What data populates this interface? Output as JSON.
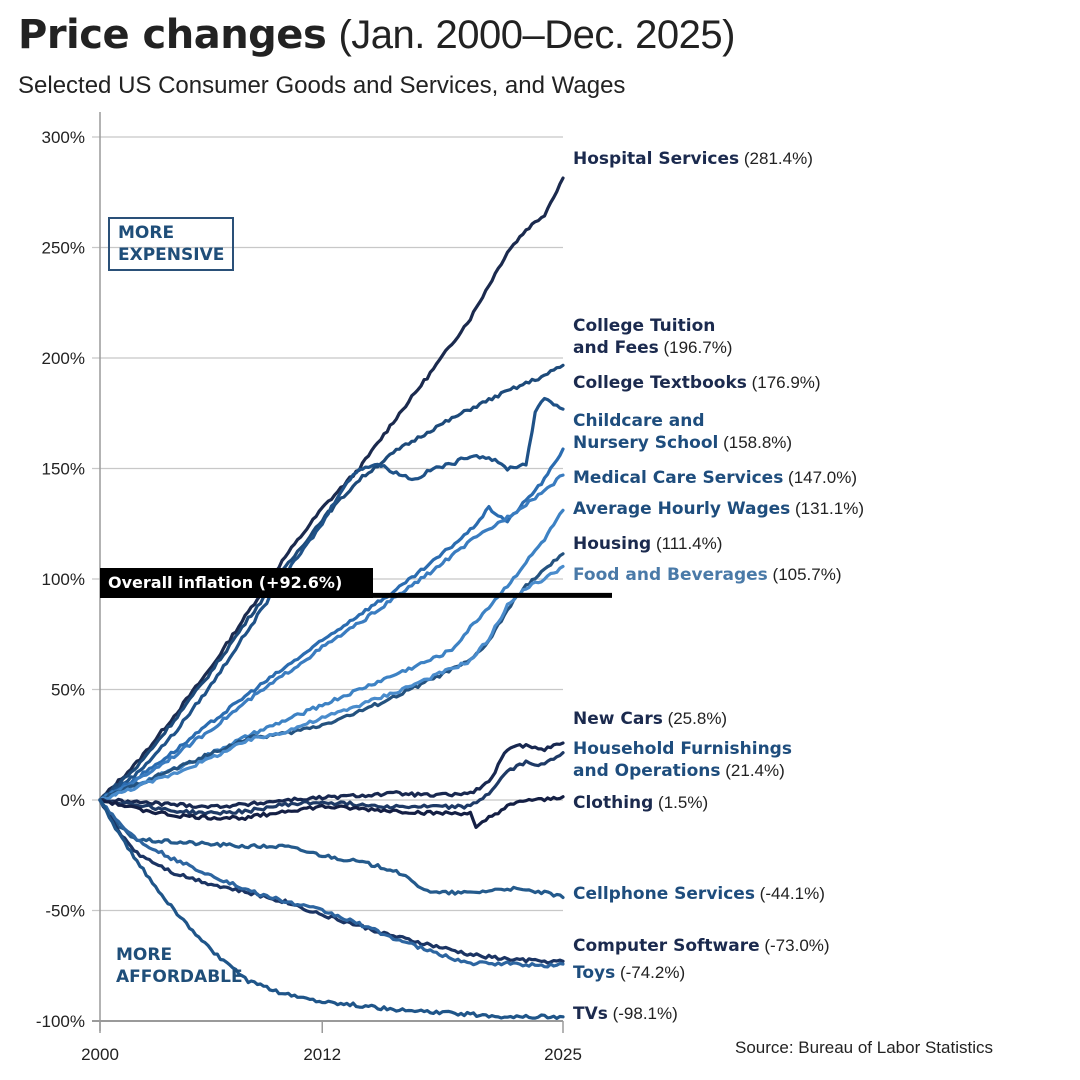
{
  "header": {
    "title_bold": "Price changes",
    "title_light": "(Jan. 2000–Dec. 2025)",
    "subtitle": "Selected US Consumer Goods and Services, and Wages"
  },
  "callouts": {
    "more_expensive_line1": "MORE",
    "more_expensive_line2": "EXPENSIVE",
    "more_affordable_line1": "MORE",
    "more_affordable_line2": "AFFORDABLE"
  },
  "source": "Source: Bureau of Labor Statistics",
  "chart_data": {
    "type": "line",
    "title": "Price changes (Jan. 2000–Dec. 2025)",
    "subtitle": "Selected US Consumer Goods and Services, and Wages",
    "xlabel": "",
    "ylabel": "",
    "xlim": [
      2000,
      2025
    ],
    "ylim": [
      -100,
      300
    ],
    "x_ticks": [
      2000,
      2012,
      2025
    ],
    "x_tick_labels": [
      "2000",
      "2012",
      "2025"
    ],
    "y_ticks": [
      -100,
      -50,
      0,
      50,
      100,
      150,
      200,
      250,
      300
    ],
    "y_tick_labels": [
      "-100%",
      "-50%",
      "0%",
      "50%",
      "100%",
      "150%",
      "200%",
      "250%",
      "300%"
    ],
    "grid": "horizontal",
    "reference_line": {
      "label": "Overall inflation (+92.6%)",
      "value": 92.6
    },
    "series": [
      {
        "name": "Hospital Services",
        "final": 281.4,
        "color": "#1b2a4e",
        "label_color": "#1b2a4e",
        "label": [
          "Hospital Services"
        ],
        "x": [
          2000,
          2002,
          2004,
          2006,
          2008,
          2010,
          2012,
          2014,
          2016,
          2018,
          2020,
          2022,
          2023,
          2024,
          2025
        ],
        "y": [
          0,
          17,
          38,
          60,
          85,
          110,
          132,
          150,
          173,
          195,
          218,
          248,
          258,
          265,
          281.4
        ]
      },
      {
        "name": "College Tuition and Fees",
        "final": 196.7,
        "color": "#1d4a7a",
        "label_color": "#1b2a4e",
        "label": [
          "College Tuition",
          "and Fees"
        ],
        "x": [
          2000,
          2002,
          2004,
          2006,
          2008,
          2010,
          2012,
          2014,
          2016,
          2018,
          2020,
          2022,
          2024,
          2025
        ],
        "y": [
          0,
          15,
          36,
          58,
          82,
          105,
          127,
          145,
          158,
          168,
          177,
          185,
          192,
          196.7
        ]
      },
      {
        "name": "College Textbooks",
        "final": 176.9,
        "color": "#1f5288",
        "label_color": "#1b2a4e",
        "label": [
          "College Textbooks"
        ],
        "x": [
          2000,
          2002,
          2004,
          2006,
          2008,
          2010,
          2012,
          2013,
          2014,
          2015,
          2016,
          2017,
          2018,
          2019,
          2020,
          2021,
          2022,
          2023,
          2023.5,
          2024,
          2025
        ],
        "y": [
          0,
          12,
          30,
          52,
          77,
          102,
          125,
          140,
          150,
          152,
          148,
          145,
          150,
          152,
          156,
          155,
          150,
          152,
          175,
          182,
          176.9
        ]
      },
      {
        "name": "Childcare and Nursery School",
        "final": 158.8,
        "color": "#2b6cb0",
        "label_color": "#1e4d7d",
        "label": [
          "Childcare and",
          "Nursery School"
        ],
        "x": [
          2000,
          2002,
          2004,
          2006,
          2008,
          2010,
          2012,
          2014,
          2016,
          2018,
          2020,
          2021,
          2022,
          2024,
          2025
        ],
        "y": [
          0,
          10,
          22,
          35,
          48,
          60,
          72,
          84,
          95,
          108,
          122,
          132,
          126,
          145,
          158.8
        ]
      },
      {
        "name": "Medical Care Services",
        "final": 147.0,
        "color": "#3a7cc0",
        "label_color": "#1e4d7d",
        "label": [
          "Medical Care Services"
        ],
        "x": [
          2000,
          2002,
          2004,
          2006,
          2008,
          2010,
          2012,
          2014,
          2016,
          2018,
          2020,
          2022,
          2024,
          2025
        ],
        "y": [
          0,
          9,
          20,
          32,
          45,
          57,
          69,
          80,
          92,
          104,
          117,
          128,
          140,
          147.0
        ]
      },
      {
        "name": "Average Hourly Wages",
        "final": 131.1,
        "color": "#3d82c4",
        "label_color": "#1e4d7d",
        "label": [
          "Average Hourly Wages"
        ],
        "x": [
          2000,
          2002,
          2004,
          2006,
          2008,
          2010,
          2012,
          2014,
          2016,
          2018,
          2019,
          2020,
          2022,
          2024,
          2025
        ],
        "y": [
          0,
          7,
          14,
          21,
          29,
          36,
          43,
          50,
          57,
          64,
          68,
          78,
          97,
          118,
          131.1
        ]
      },
      {
        "name": "Housing",
        "final": 111.4,
        "color": "#24527f",
        "label_color": "#1b2a4e",
        "label": [
          "Housing"
        ],
        "x": [
          2000,
          2002,
          2004,
          2006,
          2008,
          2010,
          2012,
          2014,
          2016,
          2018,
          2020,
          2021,
          2022,
          2023,
          2024,
          2025
        ],
        "y": [
          0,
          7,
          14,
          21,
          28,
          30,
          34,
          40,
          47,
          55,
          63,
          72,
          86,
          97,
          104,
          111.4
        ]
      },
      {
        "name": "Food and Beverages",
        "final": 105.7,
        "color": "#4a8ccc",
        "label_color": "#4a7aa8",
        "label": [
          "Food and Beverages"
        ],
        "x": [
          2000,
          2002,
          2004,
          2006,
          2008,
          2010,
          2012,
          2014,
          2016,
          2018,
          2020,
          2021,
          2022,
          2023,
          2024,
          2025
        ],
        "y": [
          0,
          6,
          12,
          19,
          27,
          31,
          37,
          43,
          49,
          56,
          63,
          73,
          88,
          96,
          100,
          105.7
        ]
      },
      {
        "name": "New Cars",
        "final": 25.8,
        "color": "#182850",
        "label_color": "#1b2a4e",
        "label": [
          "New Cars"
        ],
        "x": [
          2000,
          2002,
          2004,
          2006,
          2008,
          2010,
          2012,
          2014,
          2016,
          2018,
          2020,
          2021,
          2022,
          2023,
          2024,
          2025
        ],
        "y": [
          0,
          -1,
          -2,
          -3,
          -2,
          0,
          1,
          2,
          3,
          2,
          3,
          8,
          23,
          25,
          23,
          25.8
        ]
      },
      {
        "name": "Household Furnishings and Operations",
        "final": 21.4,
        "color": "#1e3a66",
        "label_color": "#1e4d7d",
        "label": [
          "Household Furnishings",
          "and Operations"
        ],
        "x": [
          2000,
          2002,
          2004,
          2006,
          2008,
          2010,
          2012,
          2014,
          2016,
          2018,
          2020,
          2021,
          2022,
          2023,
          2024,
          2025
        ],
        "y": [
          0,
          -2,
          -5,
          -6,
          -5,
          -2,
          -1,
          -2,
          -3,
          -3,
          -3,
          3,
          13,
          17,
          16,
          21.4
        ]
      },
      {
        "name": "Clothing",
        "final": 1.5,
        "color": "#141f44",
        "label_color": "#1b2a4e",
        "label": [
          "Clothing"
        ],
        "x": [
          2000,
          2002,
          2004,
          2006,
          2008,
          2010,
          2012,
          2014,
          2016,
          2018,
          2020,
          2020.3,
          2021,
          2022,
          2023,
          2024,
          2025
        ],
        "y": [
          0,
          -4,
          -7,
          -8,
          -8,
          -5,
          -3,
          -4,
          -5,
          -6,
          -6,
          -13,
          -8,
          -3,
          0,
          0,
          1.5
        ]
      },
      {
        "name": "Cellphone Services",
        "final": -44.1,
        "color": "#245a8c",
        "label_color": "#1e4d7d",
        "label": [
          "Cellphone Services"
        ],
        "x": [
          2000,
          2001,
          2002,
          2004,
          2006,
          2008,
          2010,
          2012,
          2014,
          2016,
          2017,
          2018,
          2020,
          2022,
          2024,
          2025
        ],
        "y": [
          0,
          -12,
          -18,
          -19,
          -20,
          -21,
          -21,
          -25,
          -28,
          -32,
          -38,
          -42,
          -42,
          -40,
          -42,
          -44.1
        ]
      },
      {
        "name": "Computer Software",
        "final": -73.0,
        "color": "#1b3463",
        "label_color": "#1b2a4e",
        "label": [
          "Computer Software"
        ],
        "x": [
          2000,
          2001,
          2002,
          2004,
          2006,
          2008,
          2010,
          2012,
          2014,
          2016,
          2018,
          2020,
          2022,
          2024,
          2025
        ],
        "y": [
          0,
          -14,
          -24,
          -33,
          -38,
          -42,
          -46,
          -52,
          -57,
          -62,
          -66,
          -70,
          -72,
          -73,
          -73.0
        ]
      },
      {
        "name": "Toys",
        "final": -74.2,
        "color": "#2d65a0",
        "label_color": "#1e4d7d",
        "label": [
          "Toys"
        ],
        "x": [
          2000,
          2001,
          2002,
          2004,
          2006,
          2008,
          2010,
          2012,
          2014,
          2016,
          2018,
          2020,
          2022,
          2024,
          2025
        ],
        "y": [
          0,
          -10,
          -18,
          -27,
          -34,
          -41,
          -46,
          -50,
          -56,
          -63,
          -69,
          -74,
          -74,
          -75,
          -74.2
        ]
      },
      {
        "name": "TVs",
        "final": -98.1,
        "color": "#1f5589",
        "label_color": "#1b2a4e",
        "label": [
          "TVs"
        ],
        "x": [
          2000,
          2001,
          2002,
          2004,
          2006,
          2008,
          2010,
          2012,
          2014,
          2016,
          2018,
          2020,
          2022,
          2024,
          2025
        ],
        "y": [
          0,
          -15,
          -28,
          -50,
          -68,
          -82,
          -88,
          -91,
          -93,
          -95,
          -96,
          -97,
          -98,
          -98,
          -98.1
        ]
      }
    ],
    "label_lines": [
      {
        "series": 0,
        "lines": [
          "Hospital Services"
        ],
        "value_text": "(281.4%)"
      },
      {
        "series": 1,
        "lines": [
          "College Tuition",
          "and Fees"
        ],
        "value_text": "(196.7%)"
      },
      {
        "series": 2,
        "lines": [
          "College Textbooks"
        ],
        "value_text": "(176.9%)"
      },
      {
        "series": 3,
        "lines": [
          "Childcare and",
          "Nursery School"
        ],
        "value_text": "(158.8%)"
      },
      {
        "series": 4,
        "lines": [
          "Medical Care Services"
        ],
        "value_text": "(147.0%)"
      },
      {
        "series": 5,
        "lines": [
          "Average Hourly Wages"
        ],
        "value_text": "(131.1%)"
      },
      {
        "series": 6,
        "lines": [
          "Housing"
        ],
        "value_text": "(111.4%)"
      },
      {
        "series": 7,
        "lines": [
          "Food and Beverages"
        ],
        "value_text": "(105.7%)"
      },
      {
        "series": 8,
        "lines": [
          "New Cars"
        ],
        "value_text": "(25.8%)"
      },
      {
        "series": 9,
        "lines": [
          "Household Furnishings",
          "and Operations"
        ],
        "value_text": "(21.4%)"
      },
      {
        "series": 10,
        "lines": [
          "Clothing"
        ],
        "value_text": "(1.5%)"
      },
      {
        "series": 11,
        "lines": [
          "Cellphone Services"
        ],
        "value_text": "(-44.1%)"
      },
      {
        "series": 12,
        "lines": [
          "Computer Software"
        ],
        "value_text": "(-73.0%)"
      },
      {
        "series": 13,
        "lines": [
          "Toys"
        ],
        "value_text": "(-74.2%)"
      },
      {
        "series": 14,
        "lines": [
          "TVs"
        ],
        "value_text": "(-98.1%)"
      }
    ]
  }
}
